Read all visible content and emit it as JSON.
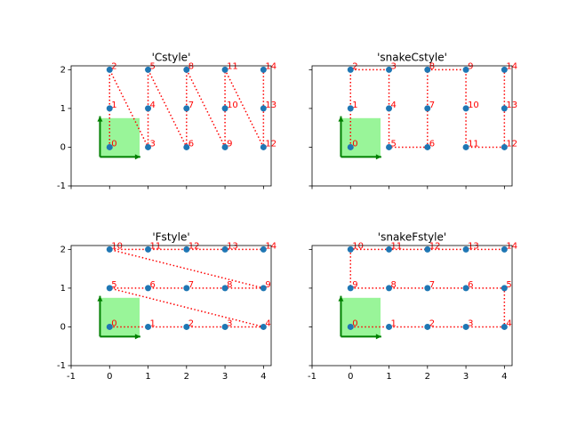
{
  "chart_data": [
    {
      "type": "scatter",
      "title": "'Cstyle'",
      "x": [
        0,
        0,
        0,
        1,
        1,
        1,
        2,
        2,
        2,
        3,
        3,
        3,
        4,
        4,
        4
      ],
      "y": [
        0,
        1,
        2,
        0,
        1,
        2,
        0,
        1,
        2,
        0,
        1,
        2,
        0,
        1,
        2
      ],
      "point_labels": [
        "0",
        "1",
        "2",
        "3",
        "4",
        "5",
        "6",
        "7",
        "8",
        "9",
        "10",
        "11",
        "12",
        "13",
        "14"
      ],
      "point_color": "#1f77b4",
      "line_color": "#ff0000",
      "label_color": "#ff0000",
      "xlim": [
        -1,
        4.2
      ],
      "ylim": [
        -1,
        2.1
      ],
      "xticks": [
        -1,
        0,
        1,
        2,
        3,
        4
      ],
      "yticks": [
        -1,
        0,
        1,
        2
      ]
    },
    {
      "type": "scatter",
      "title": "'snakeCstyle'",
      "x": [
        0,
        0,
        0,
        1,
        1,
        1,
        2,
        2,
        2,
        3,
        3,
        3,
        4,
        4,
        4
      ],
      "y": [
        0,
        1,
        2,
        2,
        1,
        0,
        0,
        1,
        2,
        2,
        1,
        0,
        0,
        1,
        2
      ],
      "point_labels": [
        "0",
        "1",
        "2",
        "3",
        "4",
        "5",
        "6",
        "7",
        "8",
        "9",
        "10",
        "11",
        "12",
        "13",
        "14"
      ],
      "point_color": "#1f77b4",
      "line_color": "#ff0000",
      "label_color": "#ff0000",
      "xlim": [
        -1,
        4.2
      ],
      "ylim": [
        -1,
        2.1
      ],
      "xticks": [
        -1,
        0,
        1,
        2,
        3,
        4
      ],
      "yticks": [
        -1,
        0,
        1,
        2
      ]
    },
    {
      "type": "scatter",
      "title": "'Fstyle'",
      "x": [
        0,
        1,
        2,
        3,
        4,
        0,
        1,
        2,
        3,
        4,
        0,
        1,
        2,
        3,
        4
      ],
      "y": [
        0,
        0,
        0,
        0,
        0,
        1,
        1,
        1,
        1,
        1,
        2,
        2,
        2,
        2,
        2
      ],
      "point_labels": [
        "0",
        "1",
        "2",
        "3",
        "4",
        "5",
        "6",
        "7",
        "8",
        "9",
        "10",
        "11",
        "12",
        "13",
        "14"
      ],
      "point_color": "#1f77b4",
      "line_color": "#ff0000",
      "label_color": "#ff0000",
      "xlim": [
        -1,
        4.2
      ],
      "ylim": [
        -1,
        2.1
      ],
      "xticks": [
        -1,
        0,
        1,
        2,
        3,
        4
      ],
      "yticks": [
        -1,
        0,
        1,
        2
      ]
    },
    {
      "type": "scatter",
      "title": "'snakeFstyle'",
      "x": [
        0,
        1,
        2,
        3,
        4,
        4,
        3,
        2,
        1,
        0,
        0,
        1,
        2,
        3,
        4
      ],
      "y": [
        0,
        0,
        0,
        0,
        0,
        1,
        1,
        1,
        1,
        1,
        2,
        2,
        2,
        2,
        2
      ],
      "point_labels": [
        "0",
        "1",
        "2",
        "3",
        "4",
        "5",
        "6",
        "7",
        "8",
        "9",
        "10",
        "11",
        "12",
        "13",
        "14"
      ],
      "point_color": "#1f77b4",
      "line_color": "#ff0000",
      "label_color": "#ff0000",
      "xlim": [
        -1,
        4.2
      ],
      "ylim": [
        -1,
        2.1
      ],
      "xticks": [
        -1,
        0,
        1,
        2,
        3,
        4
      ],
      "yticks": [
        -1,
        0,
        1,
        2
      ]
    }
  ]
}
